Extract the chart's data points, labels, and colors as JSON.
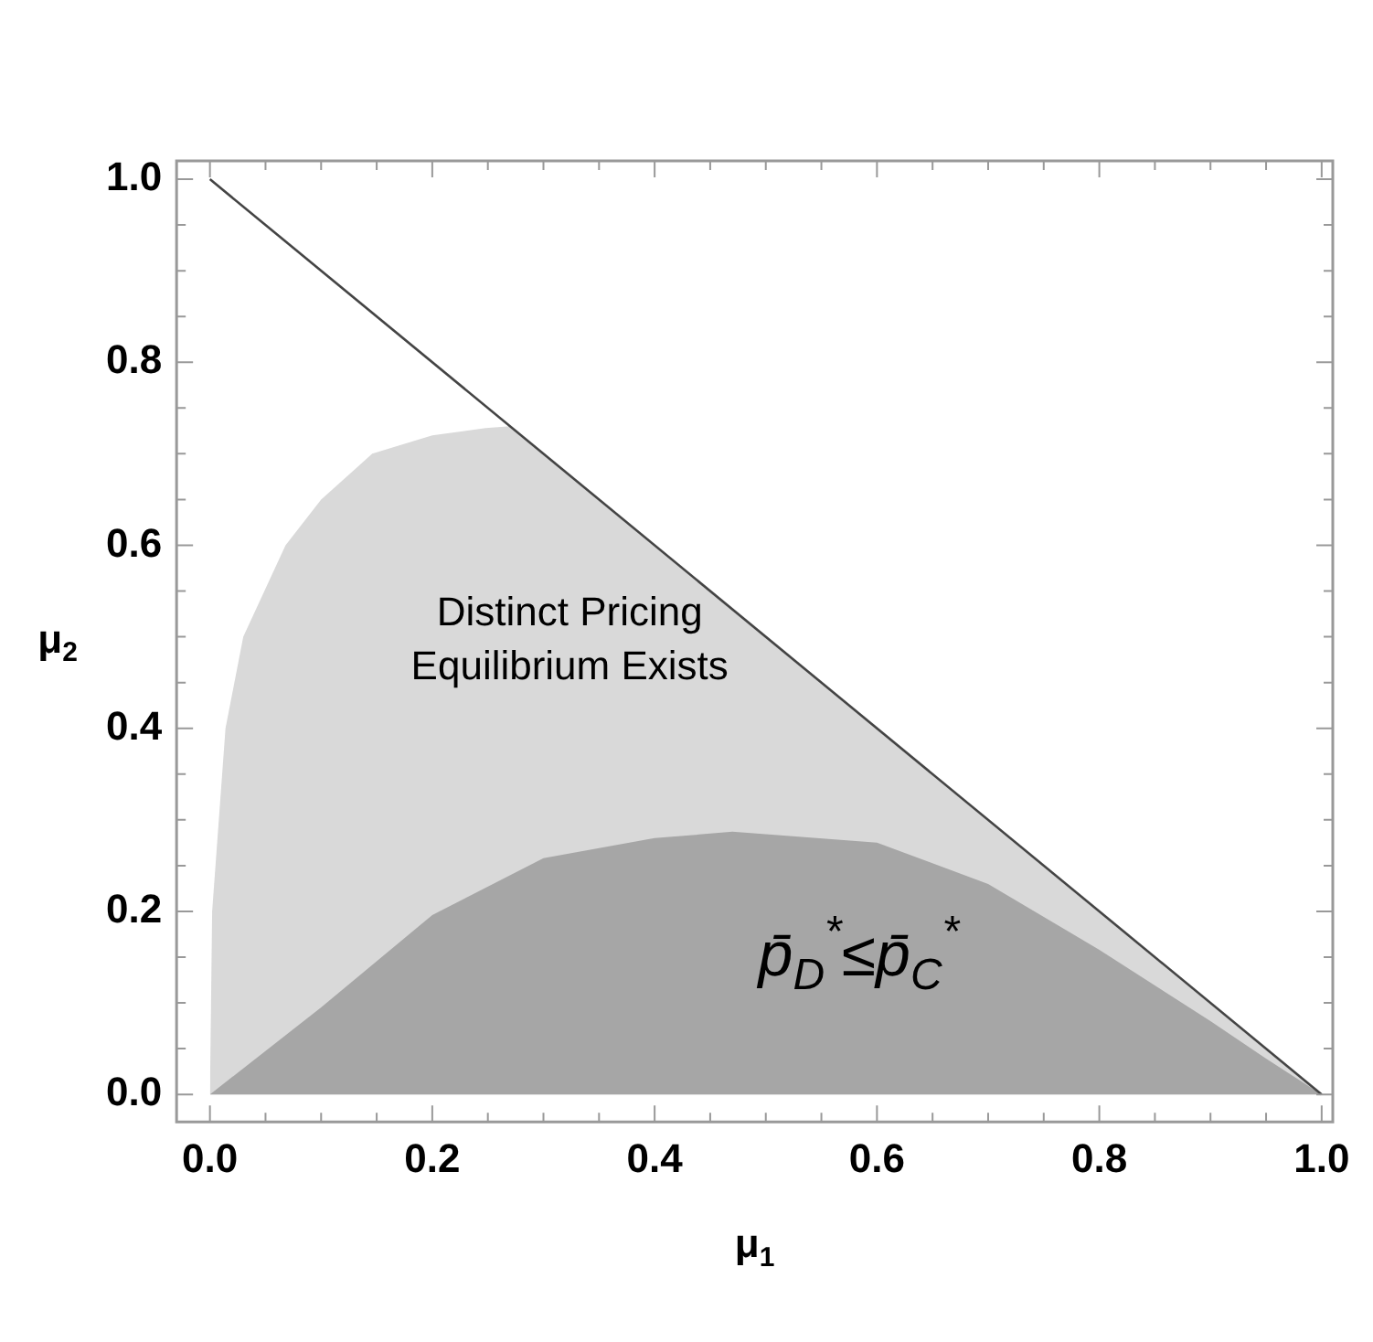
{
  "chart_data": {
    "type": "area",
    "xlabel": "μ$_{1}$",
    "ylabel": "μ$_{2}$",
    "xlim": [
      -0.03,
      1.01
    ],
    "ylim": [
      -0.03,
      1.02
    ],
    "xticks": [
      {
        "value": 0,
        "label": "0.0"
      },
      {
        "value": 0.05,
        "label": null
      },
      {
        "value": 0.1,
        "label": null
      },
      {
        "value": 0.15,
        "label": null
      },
      {
        "value": 0.2,
        "label": "0.2"
      },
      {
        "value": 0.25,
        "label": null
      },
      {
        "value": 0.3,
        "label": null
      },
      {
        "value": 0.35,
        "label": null
      },
      {
        "value": 0.4,
        "label": "0.4"
      },
      {
        "value": 0.45,
        "label": null
      },
      {
        "value": 0.5,
        "label": null
      },
      {
        "value": 0.55,
        "label": null
      },
      {
        "value": 0.6,
        "label": "0.6"
      },
      {
        "value": 0.65,
        "label": null
      },
      {
        "value": 0.7,
        "label": null
      },
      {
        "value": 0.75,
        "label": null
      },
      {
        "value": 0.8,
        "label": "0.8"
      },
      {
        "value": 0.85,
        "label": null
      },
      {
        "value": 0.9,
        "label": null
      },
      {
        "value": 0.95,
        "label": null
      },
      {
        "value": 1,
        "label": "1.0"
      }
    ],
    "yticks": [
      {
        "value": 0,
        "label": "0.0"
      },
      {
        "value": 0.05,
        "label": null
      },
      {
        "value": 0.1,
        "label": null
      },
      {
        "value": 0.15,
        "label": null
      },
      {
        "value": 0.2,
        "label": "0.2"
      },
      {
        "value": 0.25,
        "label": null
      },
      {
        "value": 0.3,
        "label": null
      },
      {
        "value": 0.35,
        "label": null
      },
      {
        "value": 0.4,
        "label": "0.4"
      },
      {
        "value": 0.45,
        "label": null
      },
      {
        "value": 0.5,
        "label": null
      },
      {
        "value": 0.55,
        "label": null
      },
      {
        "value": 0.6,
        "label": "0.6"
      },
      {
        "value": 0.65,
        "label": null
      },
      {
        "value": 0.7,
        "label": null
      },
      {
        "value": 0.75,
        "label": null
      },
      {
        "value": 0.8,
        "label": "0.8"
      },
      {
        "value": 0.85,
        "label": null
      },
      {
        "value": 0.9,
        "label": null
      },
      {
        "value": 0.95,
        "label": null
      },
      {
        "value": 1,
        "label": "1.0"
      }
    ],
    "grid": false,
    "legend": false,
    "marker": "none",
    "series": [
      {
        "type": "area",
        "color": "#d9d9d9",
        "x": [
          0,
          0.002,
          0.014,
          0.03,
          0.068,
          0.1,
          0.146,
          0.2,
          0.248,
          0.27,
          1
        ],
        "values": [
          0,
          0.2,
          0.4,
          0.5,
          0.6,
          0.65,
          0.7,
          0.72,
          0.728,
          0.73,
          0
        ]
      },
      {
        "type": "area",
        "color": "#a6a6a6",
        "x": [
          0,
          0.1,
          0.2,
          0.3,
          0.4,
          0.47,
          0.6,
          0.7,
          0.8,
          0.9,
          0.95,
          1
        ],
        "values": [
          0,
          0.095,
          0.196,
          0.258,
          0.28,
          0.287,
          0.275,
          0.23,
          0.158,
          0.08,
          0.039,
          0
        ]
      },
      {
        "type": "line",
        "color": "#444444",
        "x": [
          0,
          1
        ],
        "values": [
          1,
          0
        ]
      }
    ],
    "annotations": [
      "Distinct Pricing\nEquilibrium Exists",
      "p̄$_{D}$$^{*}$≤p̄$_{C}$$^{*}$"
    ]
  }
}
